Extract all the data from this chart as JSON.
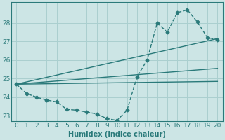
{
  "xlabel": "Humidex (Indice chaleur)",
  "ylabel": "",
  "background_color": "#cce5e5",
  "grid_color": "#aacfcf",
  "line_color": "#2a7a7a",
  "xlim": [
    -0.5,
    20.5
  ],
  "ylim": [
    22.7,
    29.1
  ],
  "yticks": [
    23,
    24,
    25,
    26,
    27,
    28
  ],
  "xticks": [
    0,
    1,
    2,
    3,
    4,
    5,
    6,
    7,
    8,
    9,
    10,
    11,
    12,
    13,
    14,
    15,
    16,
    17,
    18,
    19,
    20
  ],
  "series": [
    {
      "x": [
        0,
        1,
        2,
        3,
        4,
        5,
        6,
        7,
        8,
        9,
        10,
        11,
        12,
        13,
        14,
        15,
        16,
        17,
        18,
        19,
        20
      ],
      "y": [
        24.7,
        24.2,
        24.0,
        23.85,
        23.75,
        23.35,
        23.3,
        23.2,
        23.1,
        22.85,
        22.75,
        23.3,
        25.1,
        26.0,
        28.0,
        27.5,
        28.55,
        28.7,
        28.05,
        27.2,
        27.1
      ],
      "marker": "D",
      "markersize": 2.5,
      "linewidth": 1.0,
      "linestyle": "--"
    },
    {
      "x": [
        0,
        20
      ],
      "y": [
        24.7,
        27.15
      ],
      "marker": null,
      "markersize": 0,
      "linewidth": 1.0,
      "linestyle": "-"
    },
    {
      "x": [
        0,
        20
      ],
      "y": [
        24.7,
        25.55
      ],
      "marker": null,
      "markersize": 0,
      "linewidth": 1.0,
      "linestyle": "-"
    },
    {
      "x": [
        0,
        20
      ],
      "y": [
        24.7,
        24.85
      ],
      "marker": null,
      "markersize": 0,
      "linewidth": 1.0,
      "linestyle": "-"
    }
  ]
}
